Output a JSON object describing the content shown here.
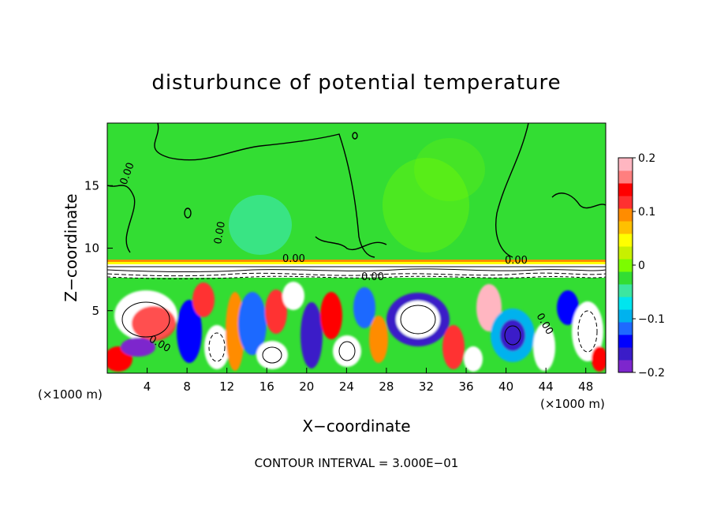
{
  "chart_data": {
    "type": "heatmap",
    "title": "disturbunce of potential temperature",
    "xlabel": "X−coordinate",
    "ylabel": "Z−coordinate",
    "x_unit_label_left": "(×1000 m)",
    "x_unit_label_right": "(×1000 m)",
    "xlim": [
      0,
      50
    ],
    "ylim": [
      0,
      20
    ],
    "x_ticks": [
      4,
      8,
      12,
      16,
      20,
      24,
      28,
      32,
      36,
      40,
      44,
      48
    ],
    "y_ticks": [
      5,
      10,
      15
    ],
    "colorbar": {
      "range": [
        -0.2,
        0.2
      ],
      "ticks": [
        0.2,
        0.1,
        0,
        -0.1,
        -0.2
      ],
      "tick_labels": [
        "0.2",
        "0.1",
        "0",
        "−0.1",
        "−0.2"
      ],
      "colors": [
        "#7d26cd",
        "#3a1cc8",
        "#0000ff",
        "#1e69ff",
        "#00b2ee",
        "#00e5ee",
        "#3ce6a0",
        "#33dd33",
        "#7cfc00",
        "#c8f000",
        "#ffff00",
        "#ffc000",
        "#ff8c00",
        "#ff3030",
        "#ff0000",
        "#ff7f7f",
        "#ffb6c1"
      ]
    },
    "contour_label": "0.00",
    "contour_interval_text": "CONTOUR INTERVAL = 3.000E−01",
    "grid": false
  }
}
